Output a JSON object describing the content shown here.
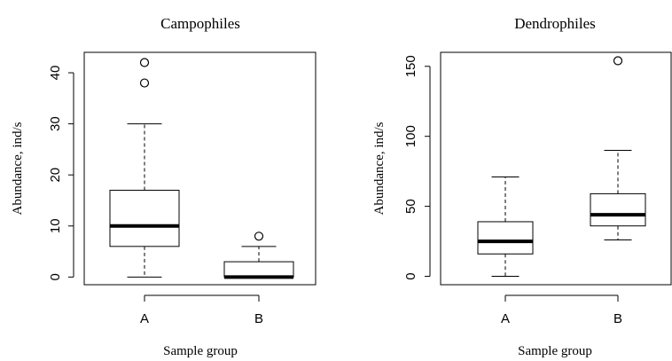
{
  "chart_data": [
    {
      "type": "boxplot",
      "title": "Campophiles",
      "xlabel": "Sample group",
      "ylabel": "Abundance, ind/s",
      "ylim": [
        -1.5,
        44
      ],
      "yticks": [
        0,
        10,
        20,
        30,
        40
      ],
      "categories": [
        "A",
        "B"
      ],
      "boxes": [
        {
          "category": "A",
          "whisker_low": 0,
          "q1": 6,
          "median": 10,
          "q3": 17,
          "whisker_high": 30,
          "outliers": [
            38,
            42
          ]
        },
        {
          "category": "B",
          "whisker_low": 0,
          "q1": 0,
          "median": 0,
          "q3": 3,
          "whisker_high": 6,
          "outliers": [
            8
          ]
        }
      ]
    },
    {
      "type": "boxplot",
      "title": "Dendrophiles",
      "xlabel": "Sample group",
      "ylabel": "Abundance, ind/s",
      "ylim": [
        -6,
        160
      ],
      "yticks": [
        0,
        50,
        100,
        150
      ],
      "categories": [
        "A",
        "B"
      ],
      "boxes": [
        {
          "category": "A",
          "whisker_low": 0,
          "q1": 16,
          "median": 25,
          "q3": 39,
          "whisker_high": 71,
          "outliers": []
        },
        {
          "category": "B",
          "whisker_low": 26,
          "q1": 36,
          "median": 44,
          "q3": 59,
          "whisker_high": 90,
          "outliers": [
            154
          ]
        }
      ]
    }
  ]
}
